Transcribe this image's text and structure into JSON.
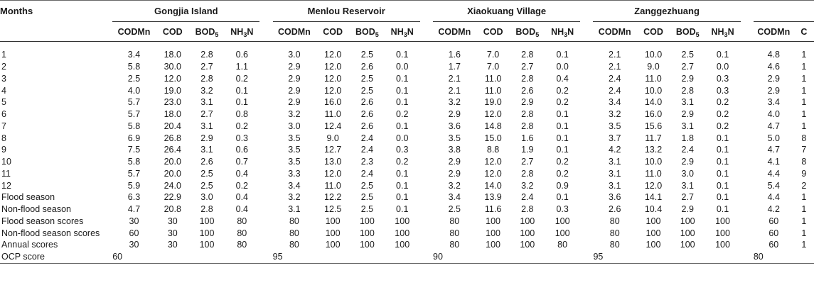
{
  "header": {
    "months_label": "Months",
    "sites": [
      "Gongjia Island",
      "Menlou Reservoir",
      "Xiaokuang Village",
      "Zanggezhuang",
      ""
    ],
    "params": [
      "CODMn",
      "COD",
      "BOD5",
      "NH3N"
    ],
    "fifth_site_params": [
      "CODMn",
      "C"
    ]
  },
  "rows": [
    {
      "label": "1",
      "values": [
        "3.4",
        "18.0",
        "2.8",
        "0.6",
        "3.0",
        "12.0",
        "2.5",
        "0.1",
        "1.6",
        "7.0",
        "2.8",
        "0.1",
        "2.1",
        "10.0",
        "2.5",
        "0.1",
        "4.8",
        "1"
      ]
    },
    {
      "label": "2",
      "values": [
        "5.8",
        "30.0",
        "2.7",
        "1.1",
        "2.9",
        "12.0",
        "2.6",
        "0.0",
        "1.7",
        "7.0",
        "2.7",
        "0.0",
        "2.1",
        "9.0",
        "2.7",
        "0.0",
        "4.6",
        "1"
      ]
    },
    {
      "label": "3",
      "values": [
        "2.5",
        "12.0",
        "2.8",
        "0.2",
        "2.9",
        "12.0",
        "2.5",
        "0.1",
        "2.1",
        "11.0",
        "2.8",
        "0.4",
        "2.4",
        "11.0",
        "2.9",
        "0.3",
        "2.9",
        "1"
      ]
    },
    {
      "label": "4",
      "values": [
        "4.0",
        "19.0",
        "3.2",
        "0.1",
        "2.9",
        "12.0",
        "2.5",
        "0.1",
        "2.1",
        "11.0",
        "2.6",
        "0.2",
        "2.4",
        "10.0",
        "2.8",
        "0.3",
        "2.9",
        "1"
      ]
    },
    {
      "label": "5",
      "values": [
        "5.7",
        "23.0",
        "3.1",
        "0.1",
        "2.9",
        "16.0",
        "2.6",
        "0.1",
        "3.2",
        "19.0",
        "2.9",
        "0.2",
        "3.4",
        "14.0",
        "3.1",
        "0.2",
        "3.4",
        "1"
      ]
    },
    {
      "label": "6",
      "values": [
        "5.7",
        "18.0",
        "2.7",
        "0.8",
        "3.2",
        "11.0",
        "2.6",
        "0.2",
        "2.9",
        "12.0",
        "2.8",
        "0.1",
        "3.2",
        "16.0",
        "2.9",
        "0.2",
        "4.0",
        "1"
      ]
    },
    {
      "label": "7",
      "values": [
        "5.8",
        "20.4",
        "3.1",
        "0.2",
        "3.0",
        "12.4",
        "2.6",
        "0.1",
        "3.6",
        "14.8",
        "2.8",
        "0.1",
        "3.5",
        "15.6",
        "3.1",
        "0.2",
        "4.7",
        "1"
      ]
    },
    {
      "label": "8",
      "values": [
        "6.9",
        "26.8",
        "2.9",
        "0.3",
        "3.5",
        "9.0",
        "2.4",
        "0.0",
        "3.5",
        "15.0",
        "1.6",
        "0.1",
        "3.7",
        "11.7",
        "1.8",
        "0.1",
        "5.0",
        "8"
      ]
    },
    {
      "label": "9",
      "values": [
        "7.5",
        "26.4",
        "3.1",
        "0.6",
        "3.5",
        "12.7",
        "2.4",
        "0.3",
        "3.8",
        "8.8",
        "1.9",
        "0.1",
        "4.2",
        "13.2",
        "2.4",
        "0.1",
        "4.7",
        "7"
      ]
    },
    {
      "label": "10",
      "values": [
        "5.8",
        "20.0",
        "2.6",
        "0.7",
        "3.5",
        "13.0",
        "2.3",
        "0.2",
        "2.9",
        "12.0",
        "2.7",
        "0.2",
        "3.1",
        "10.0",
        "2.9",
        "0.1",
        "4.1",
        "8"
      ]
    },
    {
      "label": "11",
      "values": [
        "5.7",
        "20.0",
        "2.5",
        "0.4",
        "3.3",
        "12.0",
        "2.4",
        "0.1",
        "2.9",
        "12.0",
        "2.8",
        "0.2",
        "3.1",
        "11.0",
        "3.0",
        "0.1",
        "4.4",
        "9"
      ]
    },
    {
      "label": "12",
      "values": [
        "5.9",
        "24.0",
        "2.5",
        "0.2",
        "3.4",
        "11.0",
        "2.5",
        "0.1",
        "3.2",
        "14.0",
        "3.2",
        "0.9",
        "3.1",
        "12.0",
        "3.1",
        "0.1",
        "5.4",
        "2"
      ]
    },
    {
      "label": "Flood season",
      "values": [
        "6.3",
        "22.9",
        "3.0",
        "0.4",
        "3.2",
        "12.2",
        "2.5",
        "0.1",
        "3.4",
        "13.9",
        "2.4",
        "0.1",
        "3.6",
        "14.1",
        "2.7",
        "0.1",
        "4.4",
        "1"
      ]
    },
    {
      "label": "Non-flood season",
      "values": [
        "4.7",
        "20.8",
        "2.8",
        "0.4",
        "3.1",
        "12.5",
        "2.5",
        "0.1",
        "2.5",
        "11.6",
        "2.8",
        "0.3",
        "2.6",
        "10.4",
        "2.9",
        "0.1",
        "4.2",
        "1"
      ]
    },
    {
      "label": "Flood season scores",
      "values": [
        "30",
        "30",
        "100",
        "80",
        "80",
        "100",
        "100",
        "100",
        "80",
        "100",
        "100",
        "100",
        "80",
        "100",
        "100",
        "100",
        "60",
        "1"
      ]
    },
    {
      "label": "Non-flood season scores",
      "values": [
        "60",
        "30",
        "100",
        "80",
        "80",
        "100",
        "100",
        "100",
        "80",
        "100",
        "100",
        "100",
        "80",
        "100",
        "100",
        "100",
        "60",
        "1"
      ]
    },
    {
      "label": "Annual scores",
      "values": [
        "30",
        "30",
        "100",
        "80",
        "80",
        "100",
        "100",
        "100",
        "80",
        "100",
        "100",
        "80",
        "80",
        "100",
        "100",
        "100",
        "60",
        "1"
      ]
    },
    {
      "label": "OCP score",
      "values": [
        "60",
        "",
        "",
        "",
        "95",
        "",
        "",
        "",
        "90",
        "",
        "",
        "",
        "95",
        "",
        "",
        "",
        "80",
        ""
      ]
    }
  ]
}
